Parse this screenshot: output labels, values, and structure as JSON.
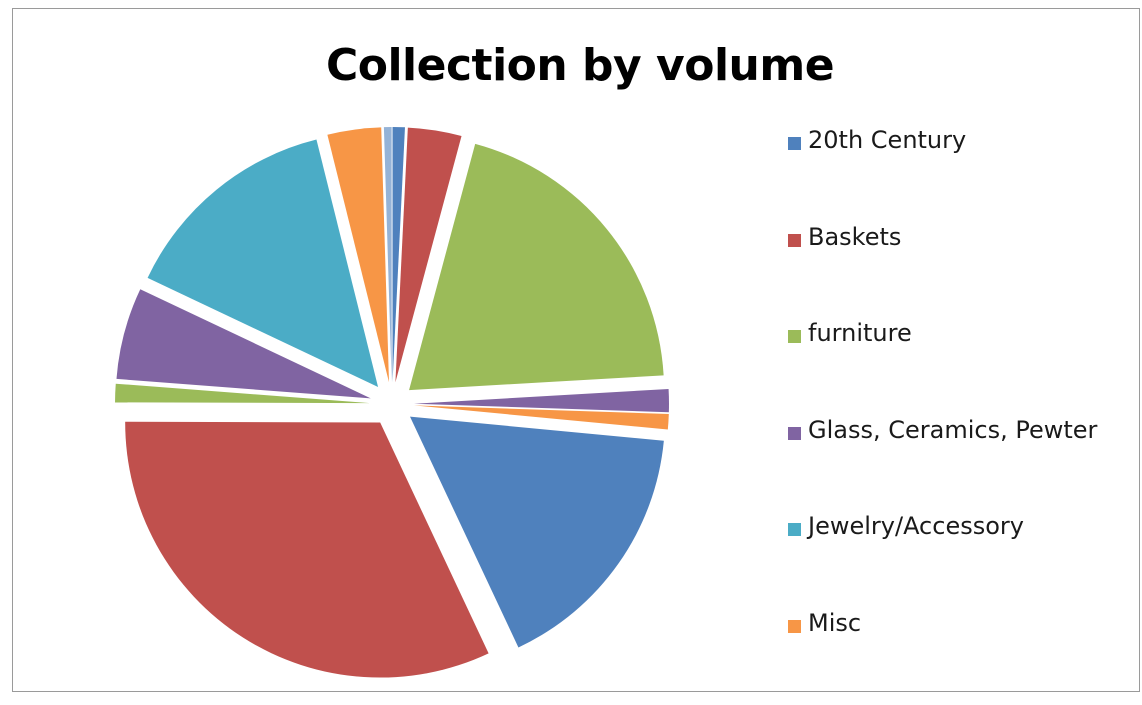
{
  "chart_data": {
    "type": "pie",
    "title": "Collection by volume",
    "exploded": true,
    "legend_position": "right",
    "slices": [
      {
        "label": "20th Century",
        "value": 0.8,
        "color": "#4f81bd",
        "in_legend": true
      },
      {
        "label": "Baskets",
        "value": 3.5,
        "color": "#c0504d",
        "in_legend": true
      },
      {
        "label": "furniture",
        "value": 20.5,
        "color": "#9bbb59",
        "in_legend": true
      },
      {
        "label": "Glass, Ceramics, Pewter",
        "value": 1.5,
        "color": "#8064a2",
        "in_legend": true
      },
      {
        "label": "",
        "value": 1.0,
        "color": "#f79646",
        "in_legend": false
      },
      {
        "label": "",
        "value": 17.0,
        "color": "#4f81bd",
        "in_legend": false
      },
      {
        "label": "",
        "value": 33.0,
        "color": "#c0504d",
        "in_legend": false
      },
      {
        "label": "",
        "value": 1.2,
        "color": "#9bbb59",
        "in_legend": false
      },
      {
        "label": "",
        "value": 6.0,
        "color": "#8064a2",
        "in_legend": false
      },
      {
        "label": "",
        "value": 14.5,
        "color": "#4bacc6",
        "in_legend": false
      },
      {
        "label": "",
        "value": 3.5,
        "color": "#f79646",
        "in_legend": false
      },
      {
        "label": "",
        "value": 0.5,
        "color": "#95b3d7",
        "in_legend": false
      }
    ],
    "legend": [
      {
        "label": "20th Century",
        "color": "#4f81bd"
      },
      {
        "label": "Baskets",
        "color": "#c0504d"
      },
      {
        "label": "furniture",
        "color": "#9bbb59"
      },
      {
        "label": "Glass, Ceramics, Pewter",
        "color": "#8064a2"
      },
      {
        "label": "Jewelry/Accessory",
        "color": "#4bacc6"
      },
      {
        "label": "Misc",
        "color": "#f79646"
      }
    ]
  }
}
